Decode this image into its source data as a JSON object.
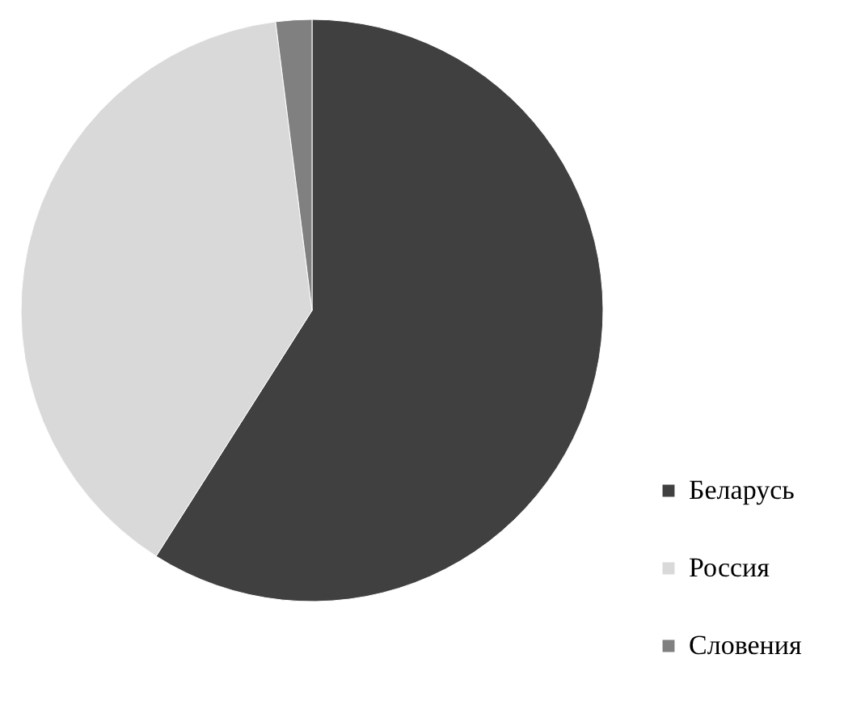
{
  "chart_data": {
    "type": "pie",
    "categories": [
      "Беларусь",
      "Россия",
      "Словения"
    ],
    "values": [
      59,
      39,
      2
    ],
    "colors": [
      "#404040",
      "#d9d9d9",
      "#808080"
    ],
    "legend": "bottom right"
  }
}
